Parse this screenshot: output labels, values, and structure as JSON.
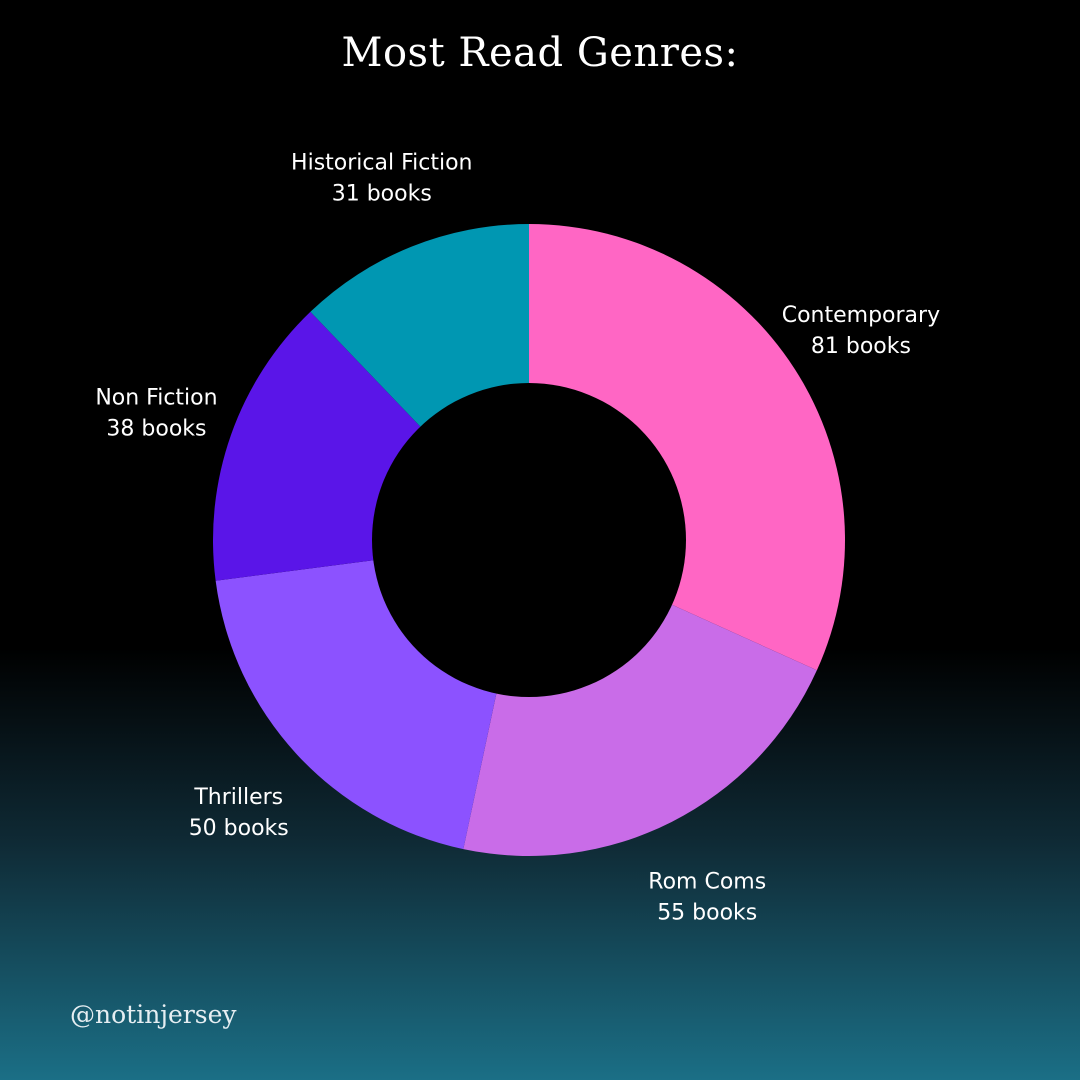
{
  "title": "Most Read Genres:",
  "handle": "@notinjersey",
  "chart_data": {
    "type": "pie",
    "title": "Most Read Genres:",
    "unit_label": "books",
    "start_angle_deg": 0,
    "direction": "clockwise",
    "slices": [
      {
        "label": "Contemporary",
        "value": 81,
        "value_label": "81 books",
        "color": "#ff66c4"
      },
      {
        "label": "Rom Coms",
        "value": 55,
        "value_label": "55 books",
        "color": "#c96ce8"
      },
      {
        "label": "Thrillers",
        "value": 50,
        "value_label": "50 books",
        "color": "#8c52ff"
      },
      {
        "label": "Non Fiction",
        "value": 38,
        "value_label": "38 books",
        "color": "#5a15e8"
      },
      {
        "label": "Historical Fiction",
        "value": 31,
        "value_label": "31 books",
        "color": "#0097b2"
      }
    ]
  }
}
